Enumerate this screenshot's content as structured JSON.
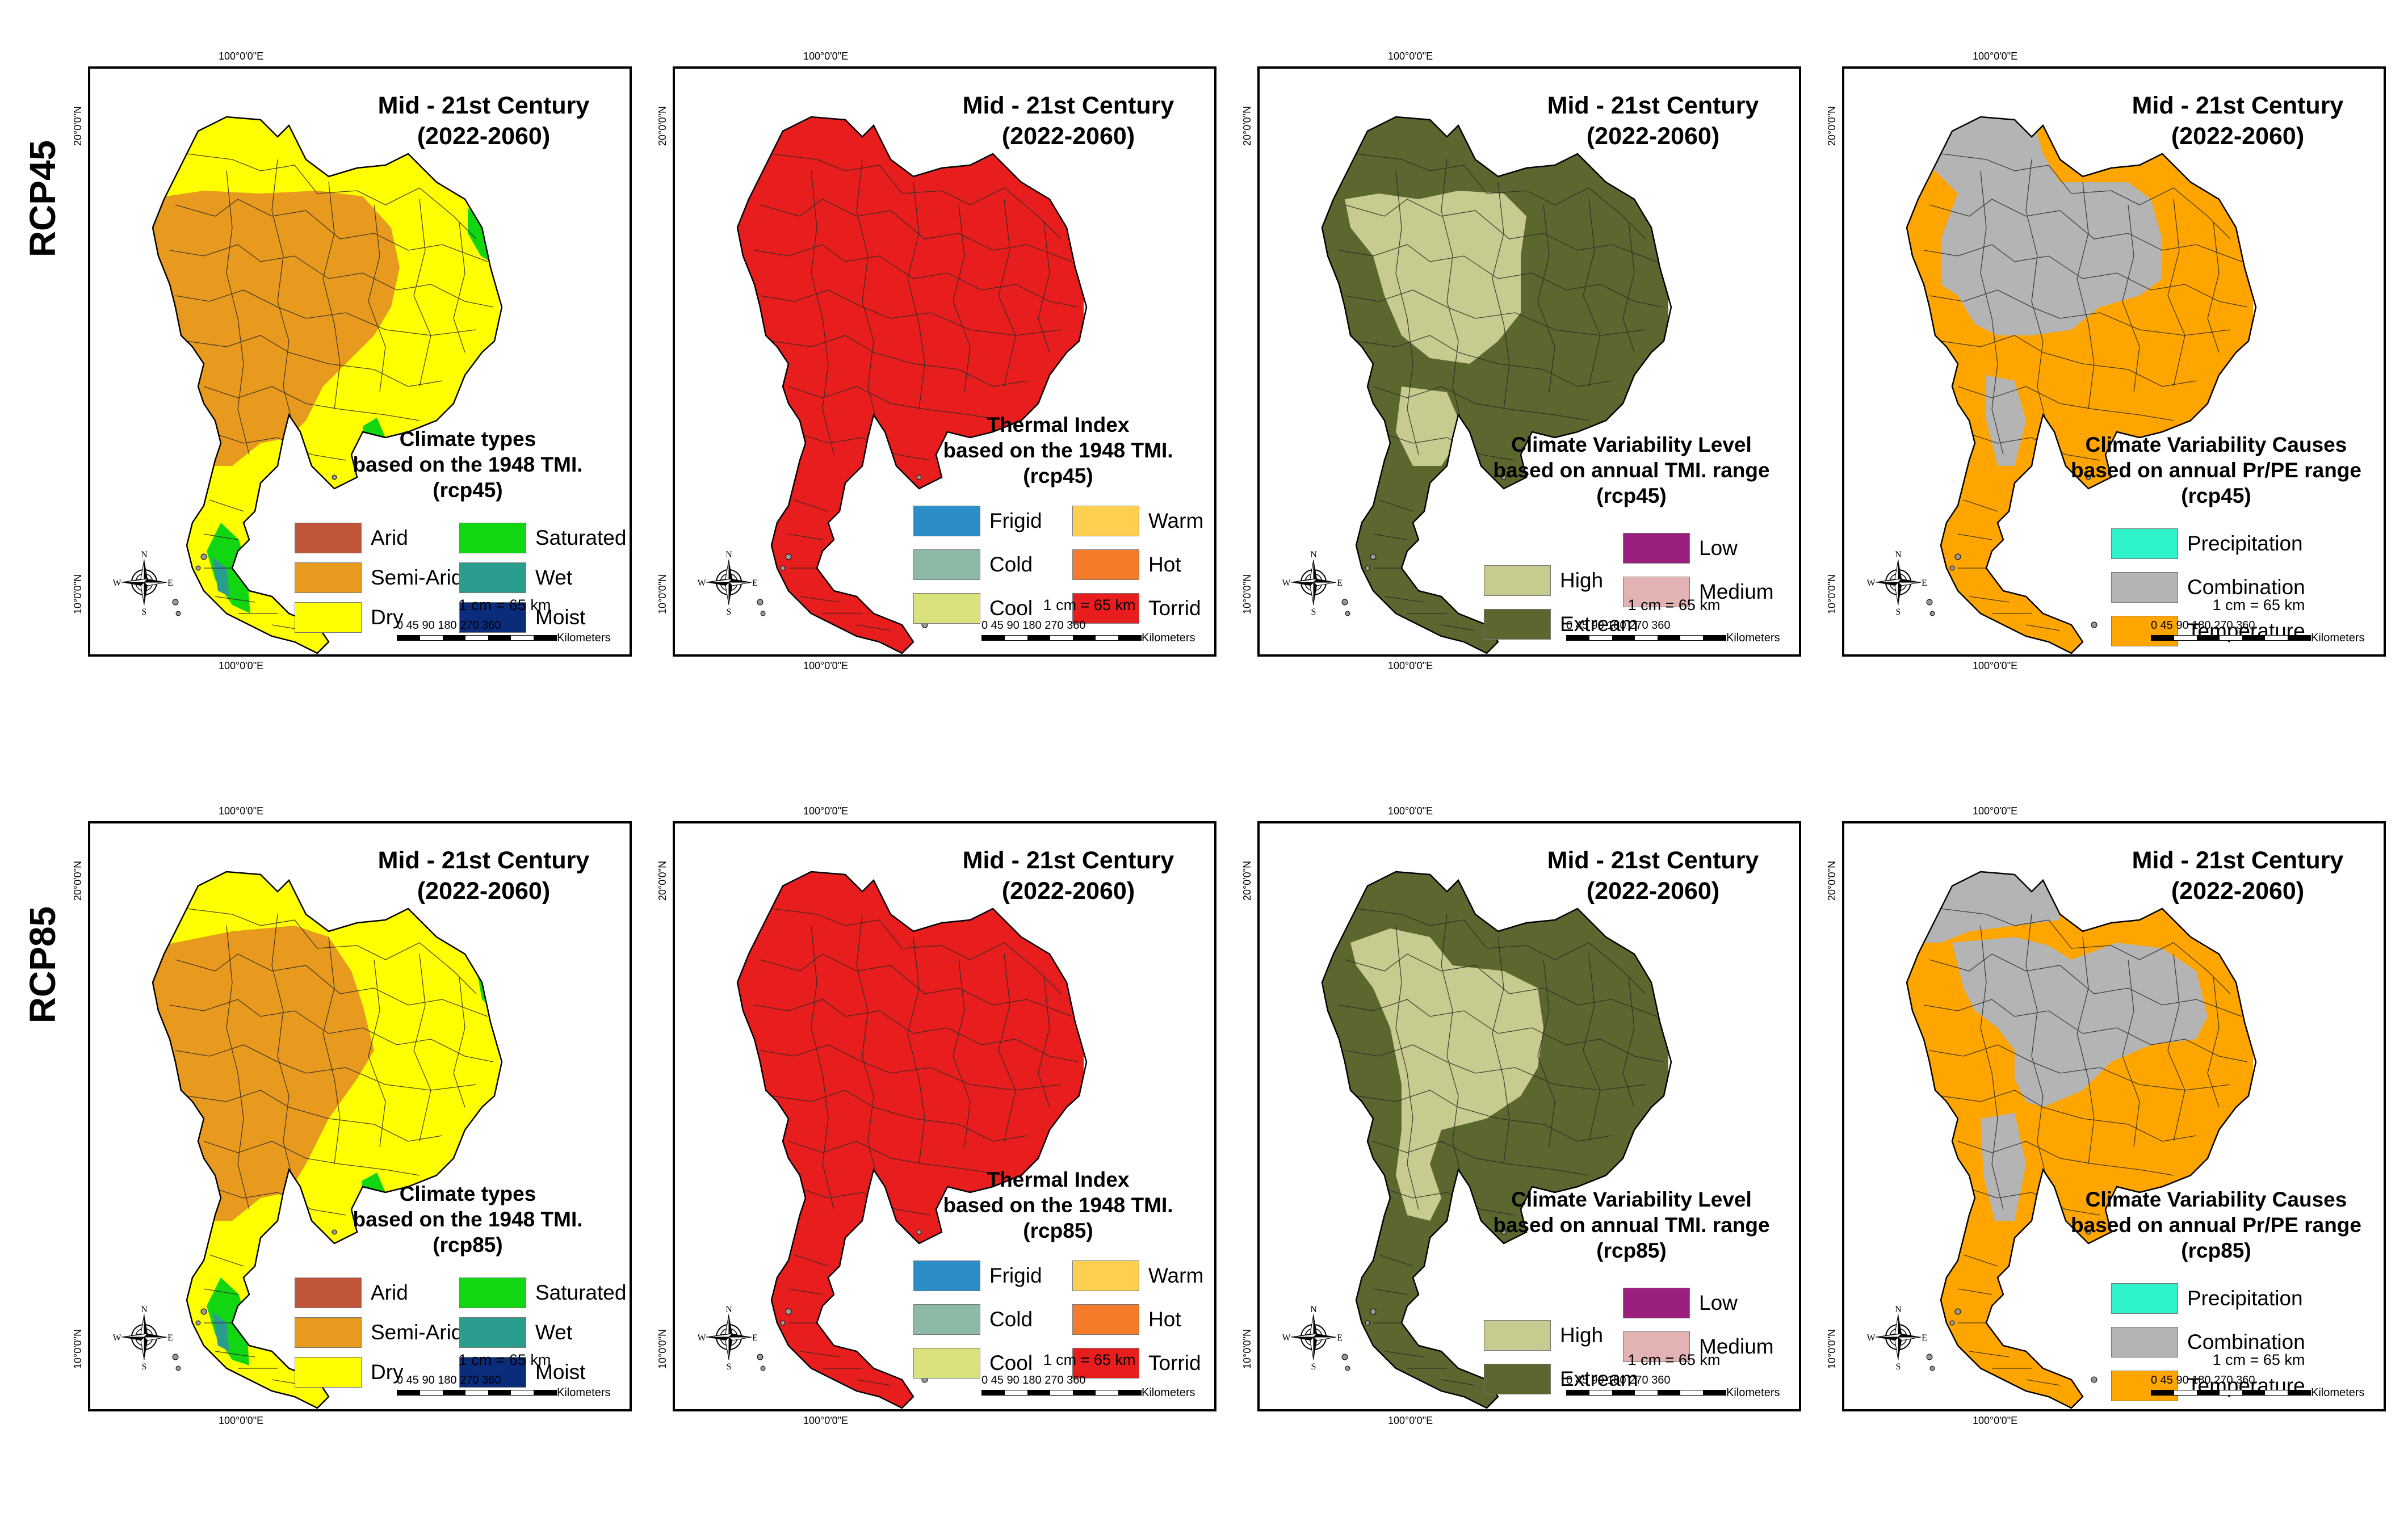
{
  "row_labels": [
    "RCP45",
    "RCP85"
  ],
  "coords": {
    "lon": "100°0'0\"E",
    "lat20": "20°0'0\"N",
    "lat10": "10°0'0\"N"
  },
  "common": {
    "title_line1": "Mid - 21st Century",
    "title_line2": "(2022-2060)",
    "scale_text": "1 cm = 65 km",
    "scale_numbers": "0  45 90     180    270    360",
    "scale_unit": "Kilometers",
    "compass": {
      "n": "N",
      "s": "S",
      "e": "E",
      "w": "W"
    }
  },
  "colors": {
    "arid": "#c0553a",
    "semi_arid": "#e89a1f",
    "dry": "#ffff00",
    "saturated": "#11d611",
    "wet": "#2a9d8f",
    "moist": "#0b2c7a",
    "frigid": "#2b8ec7",
    "cold": "#8cbaa6",
    "cool": "#d9e27c",
    "warm": "#ffd050",
    "hot": "#f47b2a",
    "torrid": "#e81e1e",
    "high": "#c8cb8f",
    "extream": "#5b672e",
    "low": "#9b1f7c",
    "medium": "#e3b3b3",
    "precipitation": "#2ef2c9",
    "combination": "#b4b4b4",
    "temperature": "#ffa500"
  },
  "legends": {
    "climate_types": {
      "caption1": "Climate types",
      "caption2": "based on the 1948 TMI.",
      "items": [
        "Arid",
        "Saturated",
        "Semi-Arid",
        "Wet",
        "Dry",
        "Moist"
      ]
    },
    "thermal_index": {
      "caption1": "Thermal Index",
      "caption2": "based on the 1948 TMI.",
      "items": [
        "Frigid",
        "Warm",
        "Cold",
        "Hot",
        "Cool",
        "Torrid"
      ]
    },
    "variability_level": {
      "caption1": "Climate Variability Level",
      "caption2": "based on annual TMI. range",
      "items": [
        "Low",
        "High",
        "Medium",
        "Extream"
      ]
    },
    "variability_causes": {
      "caption1": "Climate Variability Causes",
      "caption2": "based on annual Pr/PE range",
      "items": [
        "Precipitation",
        "Combination",
        "Temperature"
      ]
    }
  },
  "scenarios": [
    "(rcp45)",
    "(rcp85)"
  ]
}
